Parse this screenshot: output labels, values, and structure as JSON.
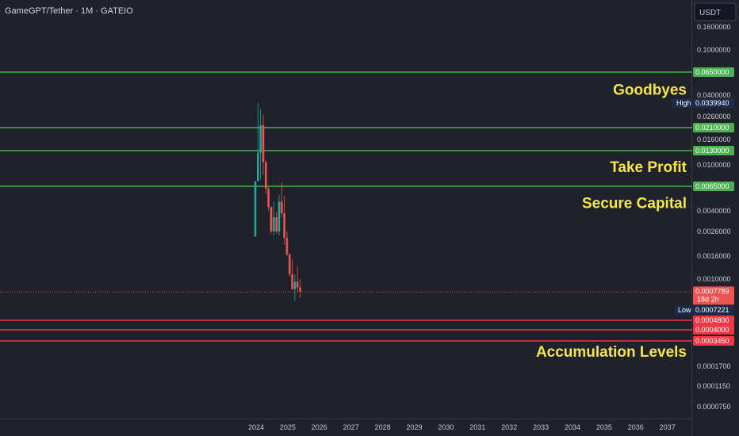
{
  "header": {
    "title": "GameGPT/Tether · 1M · GATEIO",
    "currency": "USDT"
  },
  "colors": {
    "background": "#1f212b",
    "up": "#26a69a",
    "down": "#ef5350",
    "support_line": "#4caf50",
    "level_line": "#f23645",
    "annotation": "#f5e64a",
    "marker_tag": "#1e2a4a"
  },
  "chart_data": {
    "type": "candlestick",
    "title": "GameGPT/Tether · 1M · GATEIO",
    "y_scale": "log",
    "y_unit": "USDT",
    "grid": false,
    "y_ticks": [
      "0.1600000",
      "0.1000000",
      "0.0400000",
      "0.0260000",
      "0.0160000",
      "0.0100000",
      "0.0040000",
      "0.0026000",
      "0.0016000",
      "0.0010000",
      "0.0001700",
      "0.0001150",
      "0.0000750"
    ],
    "x_ticks": [
      "2024",
      "2025",
      "2026",
      "2027",
      "2028",
      "2029",
      "2030",
      "2031",
      "2032",
      "2033",
      "2034",
      "2035",
      "2036",
      "2037"
    ],
    "candles": [
      {
        "date": "2024-01",
        "open": 0.00235,
        "high": 0.0072,
        "low": 0.00235,
        "close": 0.0072
      },
      {
        "date": "2024-02",
        "open": 0.0072,
        "high": 0.034,
        "low": 0.0072,
        "close": 0.0125
      },
      {
        "date": "2024-03",
        "open": 0.0125,
        "high": 0.03,
        "low": 0.0074,
        "close": 0.022
      },
      {
        "date": "2024-04",
        "open": 0.022,
        "high": 0.027,
        "low": 0.0082,
        "close": 0.0105
      },
      {
        "date": "2024-05",
        "open": 0.0105,
        "high": 0.011,
        "low": 0.0056,
        "close": 0.0062
      },
      {
        "date": "2024-06",
        "open": 0.0062,
        "high": 0.0064,
        "low": 0.004,
        "close": 0.0043
      },
      {
        "date": "2024-07",
        "open": 0.0043,
        "high": 0.0044,
        "low": 0.0025,
        "close": 0.0026
      },
      {
        "date": "2024-08",
        "open": 0.0026,
        "high": 0.0048,
        "low": 0.0024,
        "close": 0.0035
      },
      {
        "date": "2024-09",
        "open": 0.0035,
        "high": 0.0039,
        "low": 0.0025,
        "close": 0.0026
      },
      {
        "date": "2024-10",
        "open": 0.0026,
        "high": 0.0055,
        "low": 0.0024,
        "close": 0.0048
      },
      {
        "date": "2024-11",
        "open": 0.0048,
        "high": 0.007,
        "low": 0.0035,
        "close": 0.0038
      },
      {
        "date": "2024-12",
        "open": 0.0038,
        "high": 0.0054,
        "low": 0.002,
        "close": 0.0023
      },
      {
        "date": "2025-01",
        "open": 0.0023,
        "high": 0.0026,
        "low": 0.0016,
        "close": 0.00165
      },
      {
        "date": "2025-02",
        "open": 0.00165,
        "high": 0.0017,
        "low": 0.00105,
        "close": 0.0011
      },
      {
        "date": "2025-03",
        "open": 0.0011,
        "high": 0.0015,
        "low": 0.0008,
        "close": 0.00082
      },
      {
        "date": "2025-04",
        "open": 0.00082,
        "high": 0.0011,
        "low": 0.00075,
        "close": 0.00095
      },
      {
        "date": "2025-05",
        "open": 0.00095,
        "high": 0.0013,
        "low": 0.00078,
        "close": 0.00085
      },
      {
        "date": "2025-06",
        "open": 0.00085,
        "high": 0.001,
        "low": 0.00076,
        "close": 0.00078
      }
    ],
    "horizontal_levels": [
      {
        "value": 0.065,
        "label": "0.0650000",
        "kind": "support"
      },
      {
        "value": 0.021,
        "label": "0.0210000",
        "kind": "support"
      },
      {
        "value": 0.013,
        "label": "0.0130000",
        "kind": "support"
      },
      {
        "value": 0.0065,
        "label": "0.0065000",
        "kind": "support"
      },
      {
        "value": 0.00048,
        "label": "0.0004800",
        "kind": "level"
      },
      {
        "value": 0.0004,
        "label": "0.0004000",
        "kind": "level"
      },
      {
        "value": 0.000345,
        "label": "0.0003450",
        "kind": "level"
      }
    ],
    "markers": {
      "high": {
        "name": "High",
        "value": 0.033994,
        "label": "0.0339940"
      },
      "low": {
        "name": "Low",
        "value": 0.0007221,
        "label": "0.0007221"
      },
      "current": {
        "value": 0.0007789,
        "label": "0.0007789",
        "countdown": "18d 2h"
      }
    },
    "annotations": [
      {
        "text": "Goodbyes",
        "value": 0.0455
      },
      {
        "text": "Take Profit",
        "value": 0.0097
      },
      {
        "text": "Secure Capital",
        "value": 0.0047
      },
      {
        "text": "Accumulation Levels",
        "value": 0.00026
      }
    ]
  }
}
